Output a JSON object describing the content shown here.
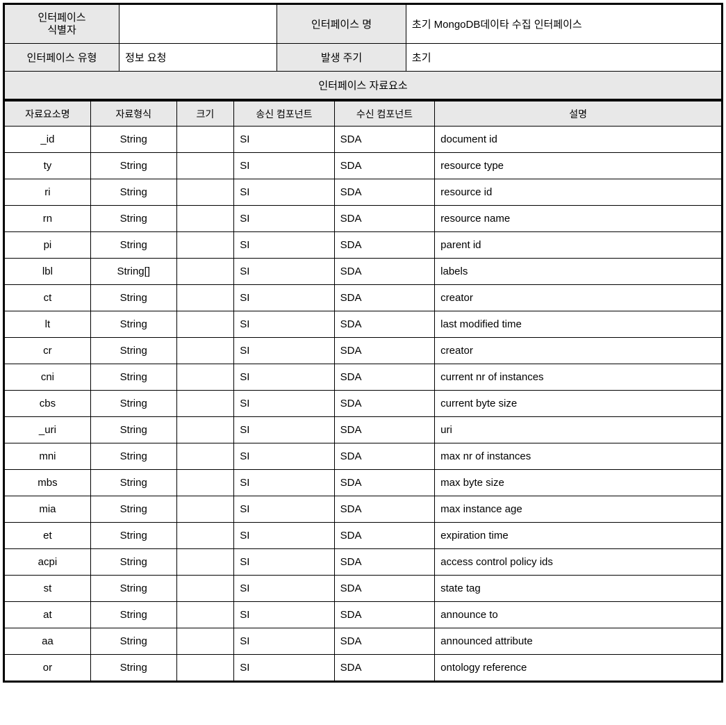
{
  "header": {
    "interface_id_label": "인터페이스<br>식별자",
    "interface_id_value": "",
    "interface_name_label": "인터페이스 명",
    "interface_name_value": "초기 MongoDB데이타 수집 인터페이스",
    "interface_type_label": "인터페이스 유형",
    "interface_type_value": "정보 요청",
    "cycle_label": "발생 주기",
    "cycle_value": "초기",
    "section_title": "인터페이스 자료요소"
  },
  "table": {
    "columns": [
      "자료요소명",
      "자료형식",
      "크기",
      "송신 컴포넌트",
      "수신 컴포넌트",
      "설명"
    ],
    "column_widths": [
      "12%",
      "12%",
      "8%",
      "14%",
      "14%",
      "40%"
    ],
    "rows": [
      {
        "name": "_id",
        "type": "String",
        "size": "",
        "send": "SI",
        "recv": "SDA",
        "desc": "document id"
      },
      {
        "name": "ty",
        "type": "String",
        "size": "",
        "send": "SI",
        "recv": "SDA",
        "desc": "resource type"
      },
      {
        "name": "ri",
        "type": "String",
        "size": "",
        "send": "SI",
        "recv": "SDA",
        "desc": "resource id"
      },
      {
        "name": "rn",
        "type": "String",
        "size": "",
        "send": "SI",
        "recv": "SDA",
        "desc": "resource name"
      },
      {
        "name": "pi",
        "type": "String",
        "size": "",
        "send": "SI",
        "recv": "SDA",
        "desc": "parent id"
      },
      {
        "name": "lbl",
        "type": "String[]",
        "size": "",
        "send": "SI",
        "recv": "SDA",
        "desc": "labels"
      },
      {
        "name": "ct",
        "type": "String",
        "size": "",
        "send": "SI",
        "recv": "SDA",
        "desc": "creator"
      },
      {
        "name": "lt",
        "type": "String",
        "size": "",
        "send": "SI",
        "recv": "SDA",
        "desc": "last modified time"
      },
      {
        "name": "cr",
        "type": "String",
        "size": "",
        "send": "SI",
        "recv": "SDA",
        "desc": "creator"
      },
      {
        "name": "cni",
        "type": "String",
        "size": "",
        "send": "SI",
        "recv": "SDA",
        "desc": "current nr of instances"
      },
      {
        "name": "cbs",
        "type": "String",
        "size": "",
        "send": "SI",
        "recv": "SDA",
        "desc": "current byte size"
      },
      {
        "name": "_uri",
        "type": "String",
        "size": "",
        "send": "SI",
        "recv": "SDA",
        "desc": "uri"
      },
      {
        "name": "mni",
        "type": "String",
        "size": "",
        "send": "SI",
        "recv": "SDA",
        "desc": "max nr of instances"
      },
      {
        "name": "mbs",
        "type": "String",
        "size": "",
        "send": "SI",
        "recv": "SDA",
        "desc": "max byte size"
      },
      {
        "name": "mia",
        "type": "String",
        "size": "",
        "send": "SI",
        "recv": "SDA",
        "desc": "max instance age"
      },
      {
        "name": "et",
        "type": "String",
        "size": "",
        "send": "SI",
        "recv": "SDA",
        "desc": "expiration time"
      },
      {
        "name": "acpi",
        "type": "String",
        "size": "",
        "send": "SI",
        "recv": "SDA",
        "desc": "access control policy ids"
      },
      {
        "name": "st",
        "type": "String",
        "size": "",
        "send": "SI",
        "recv": "SDA",
        "desc": "state tag"
      },
      {
        "name": "at",
        "type": "String",
        "size": "",
        "send": "SI",
        "recv": "SDA",
        "desc": "announce to"
      },
      {
        "name": "aa",
        "type": "String",
        "size": "",
        "send": "SI",
        "recv": "SDA",
        "desc": "announced attribute"
      },
      {
        "name": "or",
        "type": "String",
        "size": "",
        "send": "SI",
        "recv": "SDA",
        "desc": "ontology reference"
      }
    ]
  }
}
